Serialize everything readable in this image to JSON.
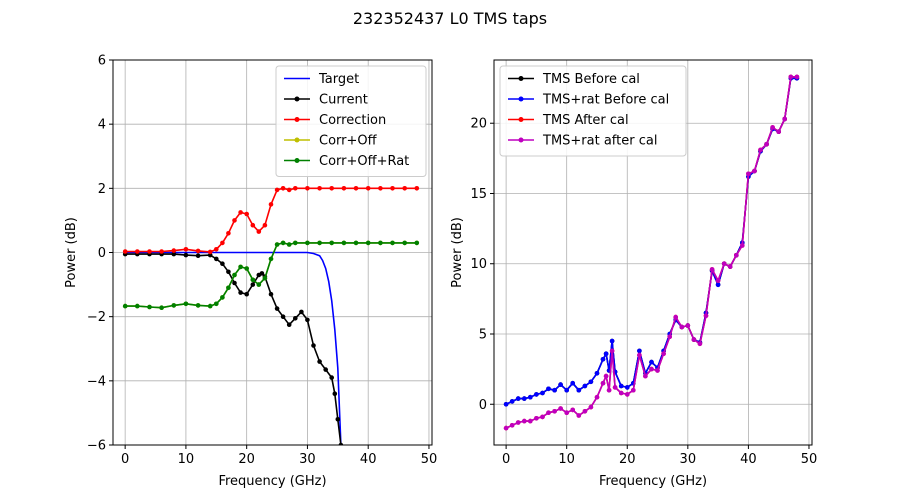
{
  "title": "232352437 L0 TMS taps",
  "chart_data": [
    {
      "type": "line",
      "xlabel": "Frequency (GHz)",
      "ylabel": "Power (dB)",
      "xlim": [
        -2,
        50.5
      ],
      "ylim": [
        -6,
        6
      ],
      "xticks": [
        0,
        10,
        20,
        30,
        40,
        50
      ],
      "yticks": [
        -6,
        -4,
        -2,
        0,
        2,
        4,
        6
      ],
      "grid": true,
      "legend_position": "top-right",
      "series": [
        {
          "name": "Target",
          "color": "#0000ff",
          "markers": false,
          "x": [
            0,
            2,
            4,
            6,
            8,
            10,
            12,
            14,
            16,
            18,
            20,
            22,
            24,
            26,
            28,
            30,
            31,
            32,
            32.5,
            33,
            33.5,
            34,
            34.5,
            35,
            35.5
          ],
          "y": [
            0,
            0,
            0,
            0,
            0,
            0,
            0,
            0,
            0,
            0,
            0,
            0,
            0,
            0,
            0,
            0,
            -0.03,
            -0.1,
            -0.25,
            -0.5,
            -0.9,
            -1.5,
            -2.4,
            -3.6,
            -6.0
          ]
        },
        {
          "name": "Current",
          "color": "#000000",
          "markers": true,
          "x": [
            0,
            2,
            4,
            6,
            8,
            10,
            12,
            14,
            15,
            16,
            17,
            18,
            19,
            20,
            21,
            22,
            22.5,
            23,
            24,
            25,
            26,
            27,
            28,
            29,
            30,
            31,
            32,
            33,
            34,
            34.5,
            35,
            35.5
          ],
          "y": [
            -0.05,
            -0.05,
            -0.05,
            -0.05,
            -0.05,
            -0.08,
            -0.1,
            -0.08,
            -0.2,
            -0.35,
            -0.6,
            -0.95,
            -1.25,
            -1.3,
            -1.0,
            -0.7,
            -0.65,
            -0.75,
            -1.3,
            -1.75,
            -2.0,
            -2.25,
            -2.05,
            -1.85,
            -2.1,
            -2.9,
            -3.4,
            -3.65,
            -3.9,
            -4.4,
            -5.2,
            -6.0
          ]
        },
        {
          "name": "Correction",
          "color": "#ff0000",
          "markers": true,
          "x": [
            0,
            2,
            4,
            6,
            8,
            10,
            12,
            14,
            15,
            16,
            17,
            18,
            19,
            20,
            21,
            22,
            23,
            24,
            25,
            26,
            27,
            28,
            30,
            32,
            34,
            36,
            38,
            40,
            42,
            44,
            46,
            48
          ],
          "y": [
            0.03,
            0.03,
            0.03,
            0.03,
            0.06,
            0.1,
            0.05,
            0.02,
            0.1,
            0.3,
            0.6,
            1.0,
            1.25,
            1.2,
            0.85,
            0.65,
            0.85,
            1.5,
            1.95,
            2.0,
            1.95,
            2.0,
            2.0,
            2.0,
            2.0,
            2.0,
            2.0,
            2.0,
            2.0,
            2.0,
            2.0,
            2.0
          ]
        },
        {
          "name": "Corr+Off",
          "color": "#bfbf00",
          "markers": true,
          "x": [
            0,
            2,
            4,
            6,
            8,
            10,
            12,
            14,
            15,
            16,
            17,
            18,
            19,
            20,
            21,
            22,
            23,
            24,
            25,
            26,
            27,
            28,
            30,
            32,
            34,
            36,
            38,
            40,
            42,
            44,
            46,
            48
          ],
          "y": [
            -1.67,
            -1.67,
            -1.7,
            -1.72,
            -1.65,
            -1.6,
            -1.65,
            -1.67,
            -1.6,
            -1.4,
            -1.1,
            -0.7,
            -0.45,
            -0.5,
            -0.85,
            -1.0,
            -0.8,
            -0.2,
            0.25,
            0.3,
            0.25,
            0.3,
            0.3,
            0.3,
            0.3,
            0.3,
            0.3,
            0.3,
            0.3,
            0.3,
            0.3,
            0.3
          ]
        },
        {
          "name": "Corr+Off+Rat",
          "color": "#008000",
          "markers": true,
          "x": [
            0,
            2,
            4,
            6,
            8,
            10,
            12,
            14,
            15,
            16,
            17,
            18,
            19,
            20,
            21,
            22,
            23,
            24,
            25,
            26,
            27,
            28,
            30,
            32,
            34,
            36,
            38,
            40,
            42,
            44,
            46,
            48
          ],
          "y": [
            -1.67,
            -1.67,
            -1.7,
            -1.72,
            -1.65,
            -1.6,
            -1.65,
            -1.67,
            -1.6,
            -1.4,
            -1.1,
            -0.7,
            -0.45,
            -0.5,
            -0.85,
            -1.0,
            -0.8,
            -0.2,
            0.25,
            0.3,
            0.25,
            0.3,
            0.3,
            0.3,
            0.3,
            0.3,
            0.3,
            0.3,
            0.3,
            0.3,
            0.3,
            0.3
          ]
        }
      ]
    },
    {
      "type": "line",
      "xlabel": "Frequency (GHz)",
      "ylabel": "Power (dB)",
      "xlim": [
        -2,
        50.5
      ],
      "ylim": [
        -2.9,
        24.5
      ],
      "xticks": [
        0,
        10,
        20,
        30,
        40,
        50
      ],
      "yticks": [
        0,
        5,
        10,
        15,
        20
      ],
      "grid": true,
      "legend_position": "top-left",
      "series": [
        {
          "name": "TMS Before cal",
          "color": "#000000",
          "markers": true,
          "x": [
            0,
            1,
            2,
            3,
            4,
            5,
            6,
            7,
            8,
            9,
            10,
            11,
            12,
            13,
            14,
            15,
            16,
            16.5,
            17,
            17.5,
            18,
            19,
            20,
            21,
            22,
            23,
            24,
            25,
            26,
            27,
            28,
            29,
            30,
            31,
            32,
            33,
            34,
            35,
            36,
            37,
            38,
            39,
            40,
            41,
            42,
            43,
            44,
            45,
            46,
            47,
            48
          ],
          "y": [
            0,
            0.2,
            0.4,
            0.4,
            0.5,
            0.7,
            0.8,
            1.1,
            1.0,
            1.4,
            1.0,
            1.5,
            1.0,
            1.3,
            1.6,
            2.2,
            3.2,
            3.6,
            2.4,
            4.5,
            2.3,
            1.3,
            1.2,
            1.5,
            3.8,
            2.2,
            3.0,
            2.6,
            3.8,
            5.0,
            6.0,
            5.5,
            5.6,
            4.6,
            4.4,
            6.5,
            9.5,
            8.5,
            10.0,
            9.8,
            10.6,
            11.5,
            16.2,
            16.6,
            18.0,
            18.5,
            19.6,
            19.4,
            20.3,
            23.2,
            23.2
          ]
        },
        {
          "name": "TMS+rat Before cal",
          "color": "#0000ff",
          "markers": true,
          "x": [
            0,
            1,
            2,
            3,
            4,
            5,
            6,
            7,
            8,
            9,
            10,
            11,
            12,
            13,
            14,
            15,
            16,
            16.5,
            17,
            17.5,
            18,
            19,
            20,
            21,
            22,
            23,
            24,
            25,
            26,
            27,
            28,
            29,
            30,
            31,
            32,
            33,
            34,
            35,
            36,
            37,
            38,
            39,
            40,
            41,
            42,
            43,
            44,
            45,
            46,
            47,
            48
          ],
          "y": [
            0,
            0.2,
            0.4,
            0.4,
            0.5,
            0.7,
            0.8,
            1.1,
            1.0,
            1.4,
            1.0,
            1.5,
            1.0,
            1.3,
            1.6,
            2.2,
            3.2,
            3.6,
            2.4,
            4.5,
            2.3,
            1.3,
            1.2,
            1.5,
            3.8,
            2.2,
            3.0,
            2.6,
            3.8,
            5.0,
            6.0,
            5.5,
            5.6,
            4.6,
            4.4,
            6.5,
            9.5,
            8.5,
            10.0,
            9.8,
            10.6,
            11.5,
            16.2,
            16.6,
            18.0,
            18.5,
            19.6,
            19.4,
            20.3,
            23.2,
            23.2
          ]
        },
        {
          "name": "TMS After cal",
          "color": "#ff0000",
          "markers": true,
          "x": [
            0,
            1,
            2,
            3,
            4,
            5,
            6,
            7,
            8,
            9,
            10,
            11,
            12,
            13,
            14,
            15,
            16,
            16.5,
            17,
            17.5,
            18,
            19,
            20,
            21,
            22,
            23,
            24,
            25,
            26,
            27,
            28,
            29,
            30,
            31,
            32,
            33,
            34,
            35,
            36,
            37,
            38,
            39,
            40,
            41,
            42,
            43,
            44,
            45,
            46,
            47,
            48
          ],
          "y": [
            -1.7,
            -1.5,
            -1.3,
            -1.2,
            -1.2,
            -1.0,
            -0.9,
            -0.6,
            -0.5,
            -0.3,
            -0.6,
            -0.4,
            -0.8,
            -0.5,
            -0.2,
            0.5,
            1.5,
            2.0,
            1.0,
            3.8,
            1.2,
            0.8,
            0.7,
            1.0,
            3.5,
            2.0,
            2.5,
            2.4,
            3.6,
            4.8,
            6.2,
            5.5,
            5.6,
            4.6,
            4.3,
            6.3,
            9.6,
            8.8,
            10.0,
            9.8,
            10.6,
            11.3,
            16.4,
            16.6,
            18.1,
            18.5,
            19.7,
            19.4,
            20.3,
            23.3,
            23.3
          ]
        },
        {
          "name": "TMS+rat after cal",
          "color": "#bf00bf",
          "markers": true,
          "x": [
            0,
            1,
            2,
            3,
            4,
            5,
            6,
            7,
            8,
            9,
            10,
            11,
            12,
            13,
            14,
            15,
            16,
            16.5,
            17,
            17.5,
            18,
            19,
            20,
            21,
            22,
            23,
            24,
            25,
            26,
            27,
            28,
            29,
            30,
            31,
            32,
            33,
            34,
            35,
            36,
            37,
            38,
            39,
            40,
            41,
            42,
            43,
            44,
            45,
            46,
            47,
            48
          ],
          "y": [
            -1.7,
            -1.5,
            -1.3,
            -1.2,
            -1.2,
            -1.0,
            -0.9,
            -0.6,
            -0.5,
            -0.3,
            -0.6,
            -0.4,
            -0.8,
            -0.5,
            -0.2,
            0.5,
            1.5,
            2.0,
            1.0,
            3.8,
            1.2,
            0.8,
            0.7,
            1.0,
            3.5,
            2.0,
            2.5,
            2.4,
            3.6,
            4.8,
            6.2,
            5.5,
            5.6,
            4.6,
            4.3,
            6.3,
            9.6,
            8.8,
            10.0,
            9.8,
            10.6,
            11.3,
            16.4,
            16.6,
            18.1,
            18.5,
            19.7,
            19.4,
            20.3,
            23.3,
            23.3
          ]
        }
      ]
    }
  ]
}
